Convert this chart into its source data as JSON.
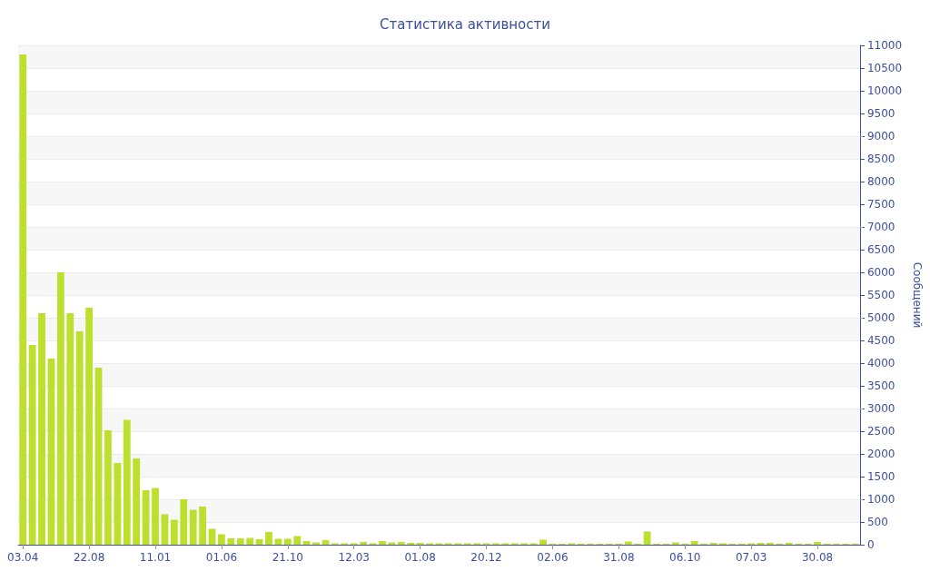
{
  "chart_data": {
    "type": "bar",
    "title": "Статистика активности",
    "ylabel": "Сообщений",
    "categories": [
      "03.04",
      null,
      null,
      null,
      null,
      null,
      null,
      "22.08",
      null,
      null,
      null,
      null,
      null,
      null,
      "11.01",
      null,
      null,
      null,
      null,
      null,
      null,
      "01.06",
      null,
      null,
      null,
      null,
      null,
      null,
      "21.10",
      null,
      null,
      null,
      null,
      null,
      null,
      "12.03",
      null,
      null,
      null,
      null,
      null,
      null,
      "01.08",
      null,
      null,
      null,
      null,
      null,
      null,
      "20.12",
      null,
      null,
      null,
      null,
      null,
      null,
      "02.06",
      null,
      null,
      null,
      null,
      null,
      null,
      "31.08",
      null,
      null,
      null,
      null,
      null,
      null,
      "06.10",
      null,
      null,
      null,
      null,
      null,
      null,
      "07.03",
      null,
      null,
      null,
      null,
      null,
      null,
      "30.08",
      null,
      null,
      null,
      null
    ],
    "values": [
      10800,
      4400,
      5100,
      4100,
      6000,
      5100,
      4700,
      5220,
      3900,
      2520,
      1800,
      2750,
      1900,
      1200,
      1250,
      670,
      550,
      1000,
      770,
      840,
      350,
      230,
      140,
      140,
      150,
      120,
      280,
      130,
      130,
      190,
      80,
      50,
      100,
      30,
      30,
      30,
      60,
      30,
      80,
      50,
      60,
      40,
      40,
      30,
      30,
      30,
      30,
      30,
      30,
      30,
      30,
      30,
      30,
      30,
      30,
      110,
      20,
      20,
      30,
      20,
      20,
      20,
      20,
      20,
      70,
      20,
      290,
      20,
      20,
      50,
      20,
      80,
      20,
      40,
      30,
      20,
      20,
      30,
      40,
      40,
      20,
      40,
      20,
      20,
      60,
      20,
      20,
      20,
      20
    ],
    "color": "#bde02e",
    "ylim": [
      0,
      11000
    ],
    "yticks": [
      0,
      500,
      1000,
      1500,
      2000,
      2500,
      3000,
      3500,
      4000,
      4500,
      5000,
      5500,
      6000,
      6500,
      7000,
      7500,
      8000,
      8500,
      9000,
      9500,
      10000,
      10500,
      11000
    ],
    "grid": "y"
  }
}
